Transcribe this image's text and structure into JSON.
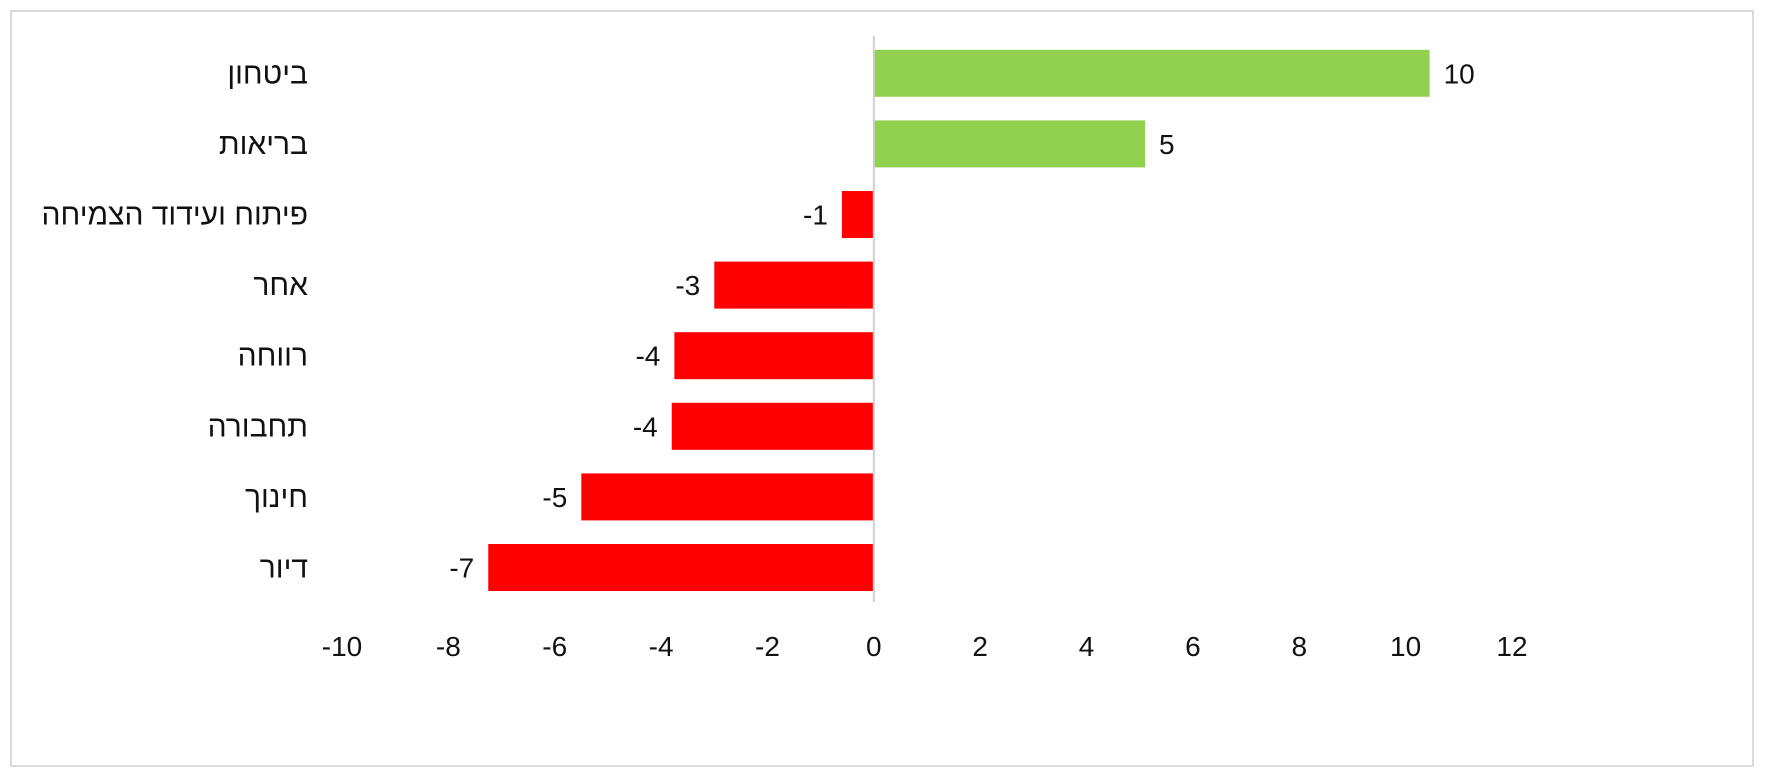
{
  "chart_data": {
    "type": "bar",
    "orientation": "horizontal",
    "categories": [
      "ביטחון",
      "בריאות",
      "פיתוח ועידוד הצמיחה",
      "אחר",
      "רווחה",
      "תחבורה",
      "חינוך",
      "דיור"
    ],
    "values": [
      10.45,
      5.1,
      -0.6,
      -3.0,
      -3.75,
      -3.8,
      -5.5,
      -7.25
    ],
    "data_labels": [
      "10",
      "5",
      "-1",
      "-3",
      "-4",
      "-4",
      "-5",
      "-7"
    ],
    "colors": {
      "positive": "#92d050",
      "negative": "#ff0000",
      "zero_axis": "#d0d0d0",
      "frame": "#d9d9d9"
    },
    "xlim": [
      -10,
      12
    ],
    "x_ticks": [
      -10,
      -8,
      -6,
      -4,
      -2,
      0,
      2,
      4,
      6,
      8,
      10,
      12
    ],
    "x_tick_labels": [
      "-10",
      "-8",
      "-6",
      "-4",
      "-2",
      "0",
      "2",
      "4",
      "6",
      "8",
      "10",
      "12"
    ],
    "grid": false,
    "title": "",
    "xlabel": "",
    "ylabel": ""
  }
}
